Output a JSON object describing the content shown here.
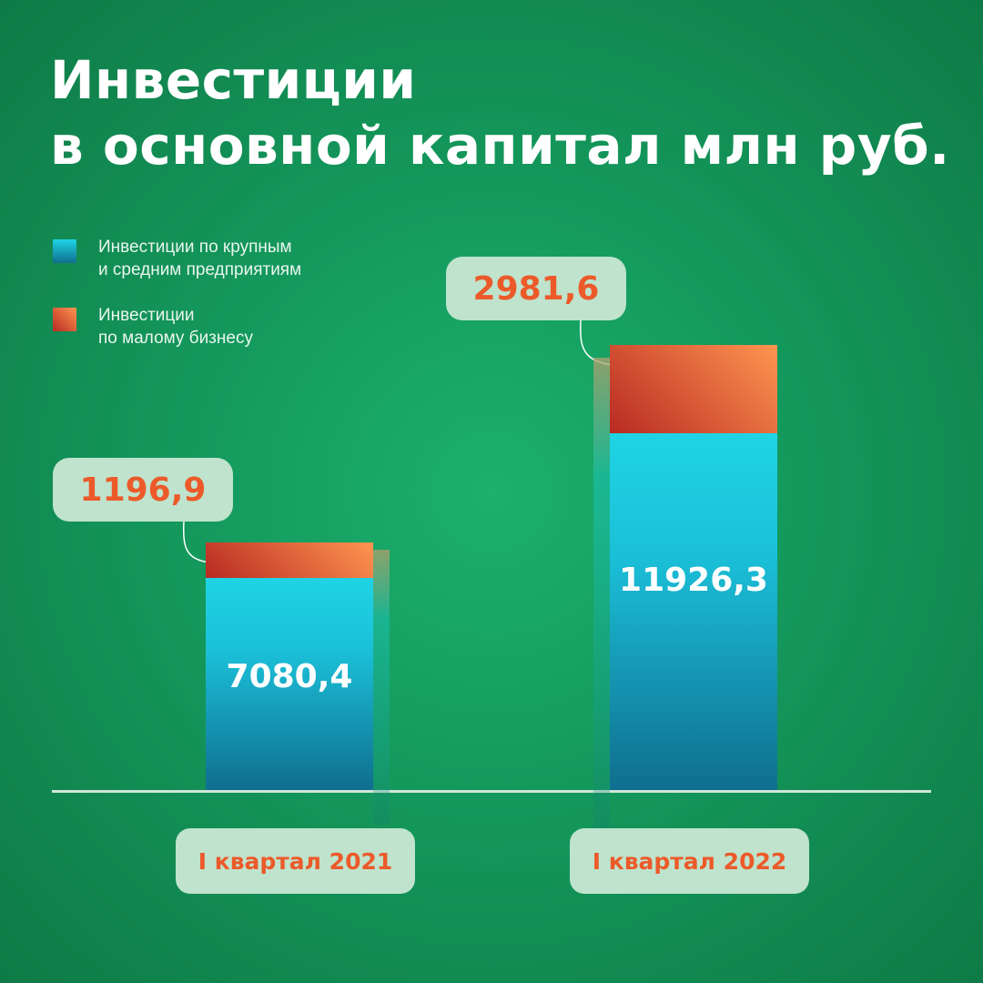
{
  "chart_data": {
    "type": "bar",
    "stacked": true,
    "title": "Инвестиции\nв основной капитал млн руб.",
    "title_lines": [
      "Инвестиции",
      "в основной капитал млн руб."
    ],
    "categories": [
      "I квартал 2021",
      "I квартал 2022"
    ],
    "series": [
      {
        "name": "Инвестиции по крупным\nи средним предприятиям",
        "values": [
          7080.4,
          11926.3
        ],
        "labels": [
          "7080,4",
          "11926,3"
        ],
        "color": "#1fd4e4"
      },
      {
        "name": "Инвестиции\nпо малому бизнесу",
        "values": [
          1196.9,
          2981.6
        ],
        "labels": [
          "1196,9",
          "2981,6"
        ],
        "color": "#e8562a"
      }
    ],
    "legend_position": "top-left",
    "grid": false
  },
  "colors": {
    "background": "#16a263",
    "large_series_top": "#1fd4e4",
    "large_series_bottom": "#0f6e8f",
    "small_series_light": "#ff9550",
    "small_series_dark": "#b82a22",
    "label_bg": "#bfe3cc",
    "label_text": "#ec5a2a"
  }
}
